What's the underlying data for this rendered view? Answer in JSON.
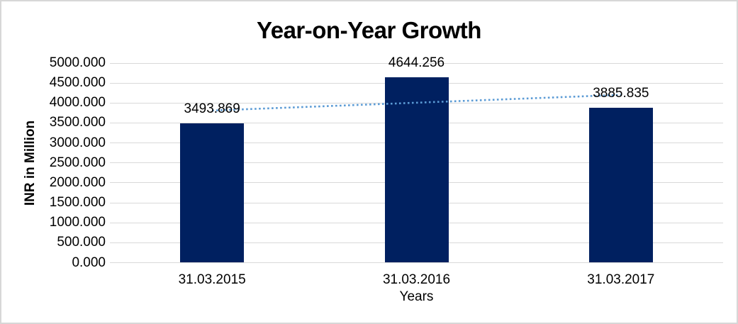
{
  "chart_data": {
    "type": "bar",
    "title": "Year-on-Year Growth",
    "xlabel": "Years",
    "ylabel": "INR in Million",
    "categories": [
      "31.03.2015",
      "31.03.2016",
      "31.03.2017"
    ],
    "values": [
      3493.869,
      4644.256,
      3885.835
    ],
    "data_labels": [
      "3493.869",
      "4644.256",
      "3885.835"
    ],
    "ylim": [
      0,
      5000
    ],
    "ytick_step": 500,
    "ytick_labels": [
      "0.000",
      "500.000",
      "1000.000",
      "1500.000",
      "2000.000",
      "2500.000",
      "3000.000",
      "3500.000",
      "4000.000",
      "4500.000",
      "5000.000"
    ],
    "grid": "horizontal",
    "legend": "none",
    "bar_color": "#002060",
    "gridline_color": "#d9d9d9",
    "trendline": {
      "style": "dotted-linear",
      "color": "#5b9bd5",
      "from_value": 3812,
      "to_value": 4204
    }
  }
}
